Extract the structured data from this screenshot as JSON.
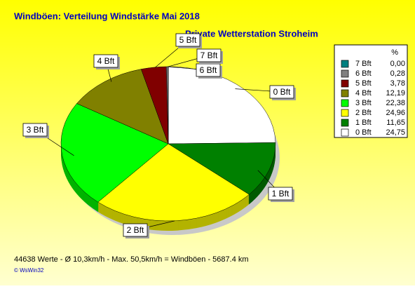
{
  "chart_data": {
    "type": "pie",
    "title": "Windböen: Verteilung Windstärke  Mai 2018",
    "subtitle": "Private Wetterstation Stroheim",
    "legend_header": "%",
    "categories": [
      "0 Bft",
      "1 Bft",
      "2 Bft",
      "3 Bft",
      "4 Bft",
      "5 Bft",
      "6 Bft",
      "7 Bft"
    ],
    "values": [
      24.75,
      11.65,
      24.96,
      22.38,
      12.19,
      3.78,
      0.28,
      0.0
    ],
    "value_labels": [
      "24,75",
      "11,65",
      "24,96",
      "22,38",
      "12,19",
      "3,78",
      "0,28",
      "0,00"
    ],
    "colors": [
      "#ffffff",
      "#008000",
      "#ffff00",
      "#00ff00",
      "#808000",
      "#800000",
      "#808080",
      "#008080"
    ],
    "footer": "44638 Werte   -   Ø 10,3km/h  -  Max. 50,5km/h = Windböen   -   5687.4 km",
    "copyright": "© WsWin32"
  }
}
